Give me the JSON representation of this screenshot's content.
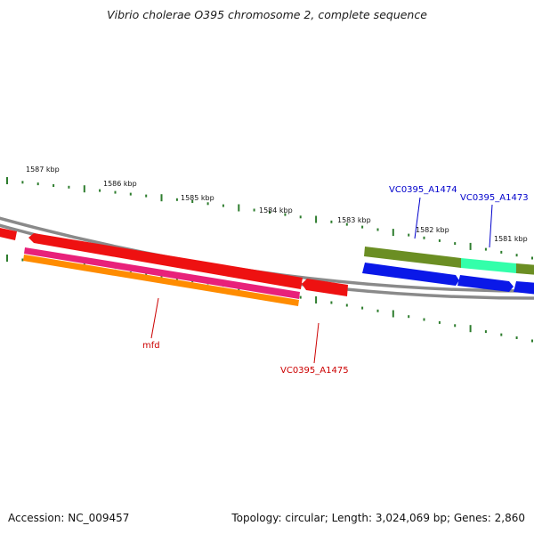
{
  "title": "Vibrio cholerae O395 chromosome 2, complete sequence",
  "footer": {
    "accession": "Accession: NC_009457",
    "summary": "Topology: circular; Length: 3,024,069 bp; Genes: 2,860"
  },
  "colors": {
    "backbone": "#8a8a8a",
    "tick": "#2e7d2e",
    "gene_red": "#ee1111",
    "gene_pink": "#e8217a",
    "gene_orange": "#ff8c00",
    "gene_olive": "#6b8e23",
    "gene_aquamarine": "#33ffaa",
    "gene_blue": "#0a18e8",
    "label_red": "#cc0000",
    "label_blue": "#0000cc"
  },
  "scale": {
    "unit": "kbp",
    "labels": [
      "1587 kbp",
      "1586 kbp",
      "1585 kbp",
      "1584 kbp",
      "1583 kbp",
      "1582 kbp",
      "1581 kbp"
    ]
  },
  "gene_labels": [
    {
      "text": "VC0395_A1474",
      "color": "label_blue"
    },
    {
      "text": "VC0395_A1473",
      "color": "label_blue"
    },
    {
      "text": "mfd",
      "color": "label_red"
    },
    {
      "text": "VC0395_A1475",
      "color": "label_red"
    }
  ]
}
